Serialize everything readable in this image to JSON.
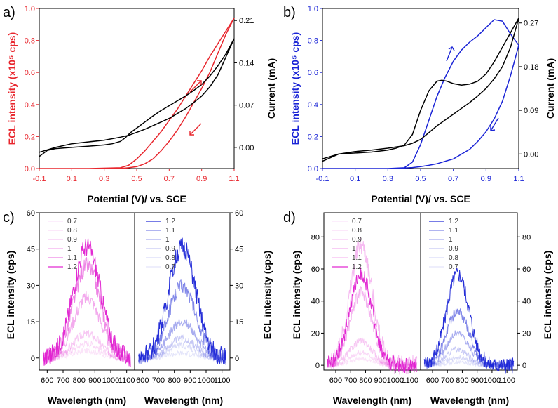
{
  "colors": {
    "black": "#000000",
    "red": "#e8262d",
    "blue": "#1a24d6",
    "magenta": "#e01fd0"
  },
  "chart_data": [
    {
      "panel": "a)",
      "type": "line",
      "title": "",
      "xlabel": "Potential (V)/ vs. SCE",
      "ylabel_left": "ECL intensity (x10⁵ cps)",
      "ylabel_right": "Current (mA)",
      "xlim": [
        -0.1,
        1.1
      ],
      "ylim_left": [
        0,
        1.0
      ],
      "ylim_right": [
        -0.035,
        0.23
      ],
      "xticks": [
        "-0.1",
        "0.1",
        "0.3",
        "0.5",
        "0.7",
        "0.9",
        "1.1"
      ],
      "yticks_left": [
        "0.0",
        "0.2",
        "0.4",
        "0.6",
        "0.8",
        "1.0"
      ],
      "yticks_right": [
        "0.00",
        "0.07",
        "0.14",
        "0.21"
      ],
      "series": [
        {
          "name": "ECL",
          "axis": "left",
          "color": "red",
          "x": [
            -0.1,
            0.2,
            0.4,
            0.45,
            0.5,
            0.55,
            0.6,
            0.65,
            0.7,
            0.75,
            0.8,
            0.85,
            0.9,
            0.95,
            1.0,
            1.05,
            1.1,
            1.05,
            1.0,
            0.95,
            0.9,
            0.85,
            0.8,
            0.75,
            0.7,
            0.65,
            0.6,
            0.55,
            0.5,
            0.45,
            0.4,
            0.2,
            -0.1
          ],
          "y": [
            0.0,
            0.0,
            0.005,
            0.02,
            0.06,
            0.11,
            0.17,
            0.23,
            0.3,
            0.37,
            0.45,
            0.53,
            0.61,
            0.7,
            0.78,
            0.86,
            0.94,
            0.84,
            0.72,
            0.6,
            0.5,
            0.41,
            0.32,
            0.24,
            0.17,
            0.11,
            0.06,
            0.03,
            0.012,
            0.005,
            0.0,
            0.0,
            0.0
          ]
        },
        {
          "name": "Current",
          "axis": "right",
          "color": "black",
          "x": [
            -0.1,
            -0.05,
            0.0,
            0.1,
            0.2,
            0.3,
            0.35,
            0.4,
            0.43,
            0.46,
            0.5,
            0.55,
            0.6,
            0.65,
            0.7,
            0.75,
            0.8,
            0.85,
            0.9,
            0.95,
            1.0,
            1.05,
            1.1,
            1.05,
            1.0,
            0.95,
            0.9,
            0.85,
            0.8,
            0.75,
            0.7,
            0.65,
            0.6,
            0.55,
            0.5,
            0.45,
            0.4,
            0.3,
            0.2,
            0.1,
            0.0,
            -0.1
          ],
          "y": [
            -0.015,
            -0.005,
            -0.002,
            0.0,
            0.002,
            0.004,
            0.006,
            0.01,
            0.016,
            0.024,
            0.032,
            0.042,
            0.052,
            0.061,
            0.069,
            0.077,
            0.085,
            0.094,
            0.104,
            0.118,
            0.135,
            0.155,
            0.18,
            0.15,
            0.12,
            0.1,
            0.085,
            0.074,
            0.064,
            0.056,
            0.048,
            0.042,
            0.036,
            0.03,
            0.025,
            0.02,
            0.017,
            0.012,
            0.009,
            0.006,
            0.0,
            -0.008
          ]
        }
      ],
      "annotations": [
        "up-arrow",
        "down-arrow"
      ]
    },
    {
      "panel": "b)",
      "type": "line",
      "title": "",
      "xlabel": "Potential (V)/ vs. SCE",
      "ylabel_left": "ECL intensity (x10⁵ cps)",
      "ylabel_right": "Current (mA)",
      "xlim": [
        -0.1,
        1.1
      ],
      "ylim_left": [
        0,
        1.0
      ],
      "ylim_right": [
        -0.03,
        0.3
      ],
      "xticks": [
        "-0.1",
        "0.1",
        "0.3",
        "0.5",
        "0.7",
        "0.9",
        "1.1"
      ],
      "yticks_left": [
        "0.0",
        "0.2",
        "0.4",
        "0.6",
        "0.8",
        "1.0"
      ],
      "yticks_right": [
        "0.00",
        "0.09",
        "0.18",
        "0.27"
      ],
      "series": [
        {
          "name": "ECL",
          "axis": "left",
          "color": "blue",
          "x": [
            -0.1,
            0.3,
            0.4,
            0.45,
            0.5,
            0.55,
            0.6,
            0.65,
            0.7,
            0.75,
            0.8,
            0.85,
            0.9,
            0.95,
            1.0,
            1.05,
            1.1,
            1.05,
            1.0,
            0.95,
            0.9,
            0.85,
            0.8,
            0.75,
            0.7,
            0.65,
            0.6,
            0.55,
            0.5,
            0.45,
            0.4,
            0.3,
            -0.1
          ],
          "y": [
            0.0,
            0.0,
            0.005,
            0.04,
            0.15,
            0.3,
            0.45,
            0.57,
            0.67,
            0.74,
            0.79,
            0.83,
            0.88,
            0.93,
            0.92,
            0.84,
            0.77,
            0.58,
            0.42,
            0.31,
            0.23,
            0.17,
            0.12,
            0.09,
            0.06,
            0.045,
            0.03,
            0.02,
            0.012,
            0.006,
            0.003,
            0.0,
            0.0
          ]
        },
        {
          "name": "Current",
          "axis": "right",
          "color": "black",
          "x": [
            -0.1,
            0.0,
            0.1,
            0.2,
            0.3,
            0.35,
            0.4,
            0.45,
            0.5,
            0.55,
            0.6,
            0.63,
            0.66,
            0.7,
            0.75,
            0.8,
            0.85,
            0.9,
            0.95,
            1.0,
            1.05,
            1.1,
            1.05,
            1.0,
            0.95,
            0.9,
            0.85,
            0.8,
            0.75,
            0.7,
            0.65,
            0.6,
            0.55,
            0.5,
            0.45,
            0.4,
            0.3,
            0.2,
            0.1,
            0.0,
            -0.1
          ],
          "y": [
            -0.01,
            0.0,
            0.002,
            0.004,
            0.008,
            0.012,
            0.018,
            0.04,
            0.09,
            0.13,
            0.15,
            0.152,
            0.15,
            0.145,
            0.142,
            0.144,
            0.15,
            0.165,
            0.19,
            0.22,
            0.25,
            0.28,
            0.22,
            0.18,
            0.155,
            0.135,
            0.12,
            0.106,
            0.094,
            0.082,
            0.07,
            0.058,
            0.044,
            0.03,
            0.022,
            0.017,
            0.012,
            0.008,
            0.005,
            0.0,
            -0.015
          ]
        }
      ],
      "annotations": [
        "up-arrow",
        "down-arrow"
      ]
    },
    {
      "panel": "c)",
      "type": "line",
      "title": "",
      "xlabel": "Wavelength (nm)",
      "ylabel": "ECL intensity (cps)",
      "xlim": [
        550,
        1150
      ],
      "ylim": [
        -5,
        60
      ],
      "xticks": [
        "600",
        "700",
        "800",
        "900",
        "1000",
        "1100"
      ],
      "yticks": [
        "0",
        "15",
        "30",
        "45",
        "60"
      ],
      "center_nm": 850,
      "width_nm": 85,
      "left": {
        "color": "magenta",
        "legend": [
          "0.7",
          "0.8",
          "0.9",
          "1",
          "1.1",
          "1.2"
        ],
        "peaks": [
          3,
          6,
          10,
          25,
          38,
          46
        ],
        "alpha": [
          0.12,
          0.17,
          0.25,
          0.38,
          0.55,
          0.95
        ]
      },
      "right": {
        "color": "blue",
        "legend": [
          "1.2",
          "1.1",
          "1",
          "0.9",
          "0.8",
          "0.7"
        ],
        "peaks": [
          46,
          30,
          15,
          8,
          5,
          2
        ],
        "alpha": [
          0.95,
          0.55,
          0.38,
          0.25,
          0.17,
          0.12
        ]
      }
    },
    {
      "panel": "d)",
      "type": "line",
      "title": "",
      "xlabel": "Wavelength (nm)",
      "ylabel": "ECL intensity (cps)",
      "xlim": [
        520,
        1170
      ],
      "ylim": [
        -3,
        95
      ],
      "xticks": [
        "600",
        "700",
        "800",
        "900",
        "1000",
        "1100"
      ],
      "yticks": [
        "0",
        "20",
        "40",
        "60",
        "80"
      ],
      "center_nm": 770,
      "width_nm": 75,
      "left": {
        "color": "magenta",
        "legend": [
          "0.7",
          "0.8",
          "0.9",
          "1",
          "1.1",
          "1.2"
        ],
        "peaks": [
          4,
          8,
          15,
          45,
          75,
          57
        ],
        "alpha": [
          0.12,
          0.17,
          0.25,
          0.35,
          0.3,
          0.95
        ]
      },
      "right": {
        "color": "blue",
        "legend": [
          "1.2",
          "1.1",
          "1",
          "0.9",
          "0.8",
          "0.7"
        ],
        "peaks": [
          57,
          34,
          20,
          10,
          5,
          2
        ],
        "alpha": [
          0.95,
          0.55,
          0.38,
          0.25,
          0.17,
          0.12
        ]
      }
    }
  ]
}
